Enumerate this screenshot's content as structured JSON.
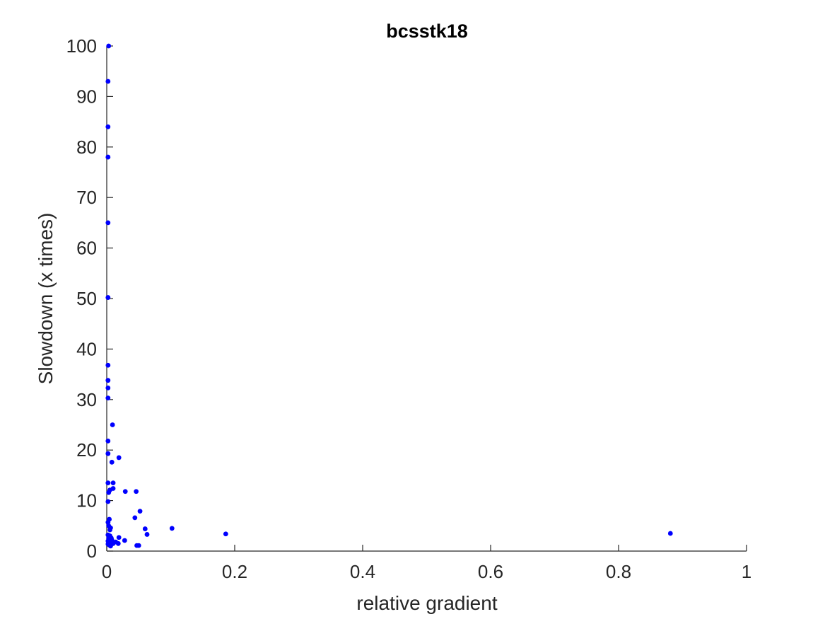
{
  "chart_data": {
    "type": "scatter",
    "title": "bcsstk18",
    "xlabel": "relative gradient",
    "ylabel": "Slowdown (x times)",
    "xlim": [
      0,
      1
    ],
    "ylim": [
      0,
      100
    ],
    "xticks": [
      0,
      0.2,
      0.4,
      0.6,
      0.8,
      1
    ],
    "xtick_labels": [
      "0",
      "0.2",
      "0.4",
      "0.6",
      "0.8",
      "1"
    ],
    "yticks": [
      0,
      10,
      20,
      30,
      40,
      50,
      60,
      70,
      80,
      90,
      100
    ],
    "ytick_labels": [
      "0",
      "10",
      "20",
      "30",
      "40",
      "50",
      "60",
      "70",
      "80",
      "90",
      "100"
    ],
    "grid": false,
    "marker_color": "#0000ff",
    "series": [
      {
        "points": [
          [
            0.003,
            100
          ],
          [
            0.002,
            93
          ],
          [
            0.002,
            84
          ],
          [
            0.002,
            78
          ],
          [
            0.002,
            65
          ],
          [
            0.002,
            50.2
          ],
          [
            0.002,
            36.8
          ],
          [
            0.002,
            33.8
          ],
          [
            0.002,
            32.3
          ],
          [
            0.002,
            30.3
          ],
          [
            0.009,
            25
          ],
          [
            0.002,
            21.8
          ],
          [
            0.002,
            19.3
          ],
          [
            0.019,
            18.5
          ],
          [
            0.008,
            17.6
          ],
          [
            0.002,
            13.5
          ],
          [
            0.01,
            13.5
          ],
          [
            0.01,
            12.4
          ],
          [
            0.005,
            12.1
          ],
          [
            0.003,
            11.6
          ],
          [
            0.029,
            11.8
          ],
          [
            0.046,
            11.8
          ],
          [
            0.002,
            9.8
          ],
          [
            0.052,
            7.9
          ],
          [
            0.044,
            6.6
          ],
          [
            0.004,
            6.3
          ],
          [
            0.002,
            5.7
          ],
          [
            0.003,
            5.0
          ],
          [
            0.006,
            4.6
          ],
          [
            0.005,
            4.2
          ],
          [
            0.06,
            4.4
          ],
          [
            0.102,
            4.5
          ],
          [
            0.063,
            3.3
          ],
          [
            0.186,
            3.4
          ],
          [
            0.881,
            3.5
          ],
          [
            0.002,
            3.2
          ],
          [
            0.005,
            3.0
          ],
          [
            0.019,
            2.7
          ],
          [
            0.003,
            2.5
          ],
          [
            0.008,
            2.2
          ],
          [
            0.028,
            2.1
          ],
          [
            0.014,
            1.8
          ],
          [
            0.005,
            1.6
          ],
          [
            0.002,
            1.4
          ],
          [
            0.01,
            1.5
          ],
          [
            0.018,
            1.5
          ],
          [
            0.004,
            1.2
          ],
          [
            0.006,
            1.0
          ],
          [
            0.047,
            1.1
          ],
          [
            0.05,
            1.1
          ],
          [
            0.002,
            2.0
          ],
          [
            0.007,
            2.6
          ]
        ]
      }
    ]
  }
}
